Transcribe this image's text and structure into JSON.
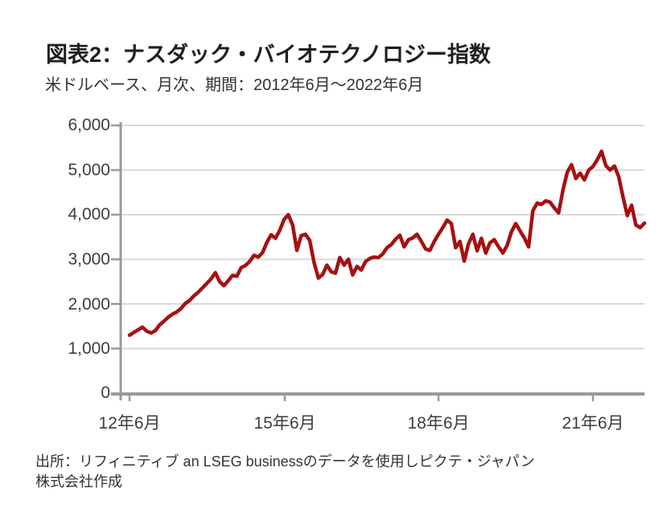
{
  "header": {
    "title": "図表2：ナスダック・バイオテクノロジー指数",
    "subtitle": "米ドルベース、月次、期間：2012年6月～2022年6月"
  },
  "footer": {
    "line1": "出所：リフィニティブ an LSEG businessのデータを使用しピクテ・ジャパン",
    "line2": "株式会社作成"
  },
  "chart_data": {
    "type": "line",
    "title": "図表2：ナスダック・バイオテクノロジー指数",
    "subtitle": "米ドルベース、月次、期間：2012年6月～2022年6月",
    "series_name": "ナスダック・バイオテクノロジー指数（米ドルベース、月次）",
    "x_start": "2012-06",
    "x_end": "2022-06",
    "frequency": "monthly",
    "x_tick_labels": [
      "12年6月",
      "15年6月",
      "18年6月",
      "21年6月"
    ],
    "y_tick_labels": [
      "0",
      "1,000",
      "2,000",
      "3,000",
      "4,000",
      "5,000",
      "6,000"
    ],
    "ylim": [
      0,
      6000
    ],
    "grid": "horizontal",
    "legend": "none",
    "line_color": "#A51111",
    "axis_color": "#999999",
    "grid_color": "#D9D9D9",
    "values": [
      1300,
      1360,
      1420,
      1480,
      1390,
      1350,
      1400,
      1530,
      1610,
      1700,
      1770,
      1820,
      1900,
      2010,
      2080,
      2180,
      2260,
      2360,
      2460,
      2560,
      2700,
      2500,
      2410,
      2520,
      2640,
      2620,
      2810,
      2860,
      2950,
      3090,
      3050,
      3150,
      3380,
      3550,
      3470,
      3650,
      3890,
      4000,
      3770,
      3200,
      3530,
      3560,
      3420,
      2930,
      2580,
      2660,
      2870,
      2720,
      2690,
      3040,
      2870,
      3000,
      2650,
      2840,
      2760,
      2950,
      3020,
      3050,
      3040,
      3120,
      3260,
      3330,
      3450,
      3540,
      3280,
      3440,
      3480,
      3560,
      3400,
      3230,
      3200,
      3400,
      3560,
      3710,
      3880,
      3800,
      3260,
      3400,
      2960,
      3350,
      3560,
      3190,
      3470,
      3140,
      3370,
      3440,
      3280,
      3140,
      3310,
      3620,
      3800,
      3640,
      3480,
      3280,
      4090,
      4260,
      4230,
      4310,
      4280,
      4150,
      4040,
      4550,
      4950,
      5120,
      4810,
      4930,
      4780,
      5000,
      5080,
      5230,
      5420,
      5100,
      5000,
      5090,
      4850,
      4400,
      3980,
      4210,
      3770,
      3710,
      3810
    ]
  }
}
